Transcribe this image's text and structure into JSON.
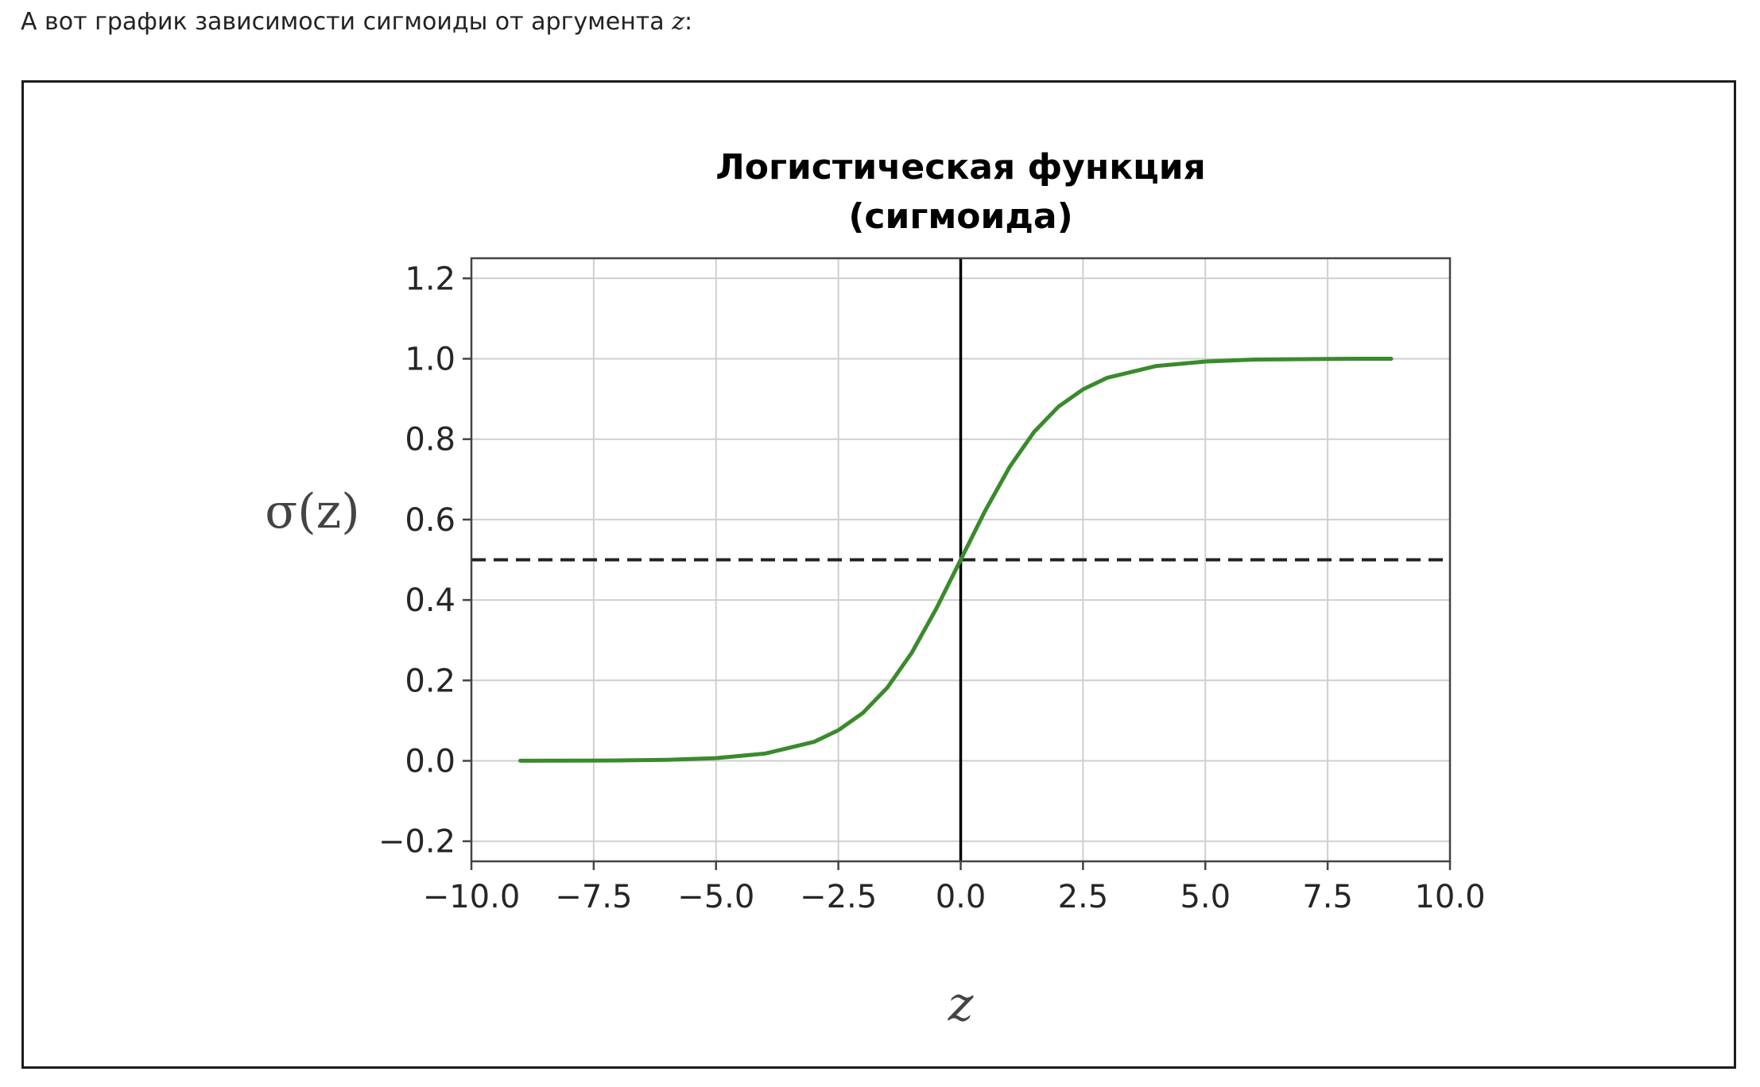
{
  "intro": {
    "text": "А вот график зависимости сигмоиды от аргумента ",
    "var": "z",
    "suffix": ":"
  },
  "chart_data": {
    "type": "line",
    "title_lines": [
      "Логистическая функция",
      "(сигмоида)"
    ],
    "xlabel": "z",
    "ylabel": "σ(z)",
    "xlim": [
      -10,
      10
    ],
    "ylim": [
      -0.25,
      1.25
    ],
    "grid": true,
    "xticks": [
      -10,
      -7.5,
      -5,
      -2.5,
      0,
      2.5,
      5,
      7.5,
      10
    ],
    "xtick_labels": [
      "−10.0",
      "−7.5",
      "−5.0",
      "−2.5",
      "0.0",
      "2.5",
      "5.0",
      "7.5",
      "10.0"
    ],
    "yticks": [
      -0.2,
      0,
      0.2,
      0.4,
      0.6,
      0.8,
      1.0,
      1.2
    ],
    "ytick_labels": [
      "−0.2",
      "0.0",
      "0.2",
      "0.4",
      "0.6",
      "0.8",
      "1.0",
      "1.2"
    ],
    "series": [
      {
        "color": "#3a8a2c",
        "x": [
          -9,
          -8,
          -7,
          -6,
          -5,
          -4,
          -3,
          -2.5,
          -2,
          -1.5,
          -1,
          -0.5,
          0,
          0.5,
          1,
          1.5,
          2,
          2.5,
          3,
          4,
          5,
          6,
          7,
          8,
          8.8
        ],
        "y": [
          0.0001,
          0.0003,
          0.0009,
          0.0025,
          0.0067,
          0.018,
          0.047,
          0.076,
          0.119,
          0.182,
          0.269,
          0.378,
          0.5,
          0.622,
          0.731,
          0.818,
          0.881,
          0.924,
          0.953,
          0.982,
          0.993,
          0.998,
          0.999,
          1.0,
          1.0
        ]
      }
    ],
    "reference_lines": [
      {
        "orientation": "horizontal",
        "value": 0.5,
        "style": "dashed",
        "color": "#222222"
      },
      {
        "orientation": "vertical",
        "value": 0,
        "style": "solid",
        "color": "#000000"
      }
    ]
  }
}
